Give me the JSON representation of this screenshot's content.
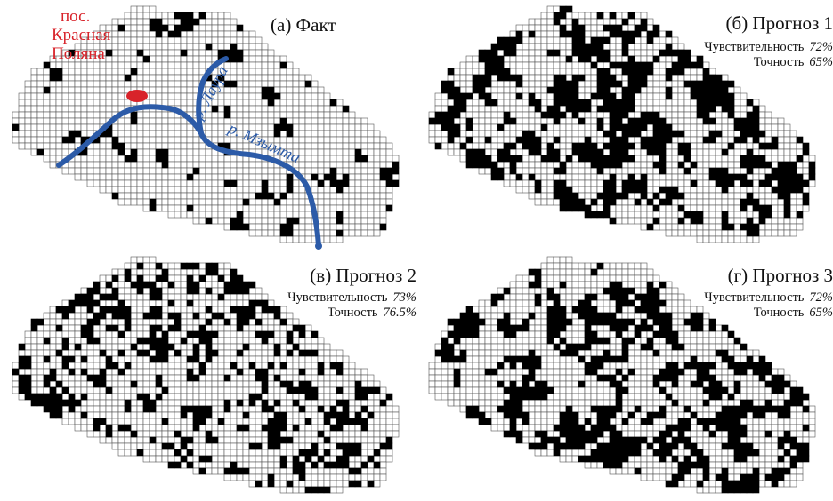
{
  "panels": [
    {
      "id": "a",
      "title": "(а) Факт",
      "density": 0.1,
      "seed": 11,
      "place_label": [
        "пос.",
        "Красная",
        "Поляна"
      ],
      "rivers": [
        "р. Лаура",
        "р. Мзымта"
      ]
    },
    {
      "id": "b",
      "title": "(б) Прогноз 1",
      "density": 0.4,
      "seed": 23,
      "stats": {
        "sensitivity_label": "Чувствительность",
        "sensitivity_value": "72%",
        "precision_label": "Точность",
        "precision_value": "65%"
      }
    },
    {
      "id": "c",
      "title": "(в) Прогноз 2",
      "density": 0.3,
      "seed": 37,
      "stats": {
        "sensitivity_label": "Чувствительность",
        "sensitivity_value": "73%",
        "precision_label": "Точность",
        "precision_value": "76.5%"
      }
    },
    {
      "id": "d",
      "title": "(г) Прогноз 3",
      "density": 0.38,
      "seed": 51,
      "stats": {
        "sensitivity_label": "Чувствительность",
        "sensitivity_value": "72%",
        "precision_label": "Точность",
        "precision_value": "65%"
      }
    }
  ],
  "colors": {
    "river": "#2c5ba8",
    "settlement": "#d8232a",
    "cell_filled": "#000000",
    "grid": "#555555"
  }
}
